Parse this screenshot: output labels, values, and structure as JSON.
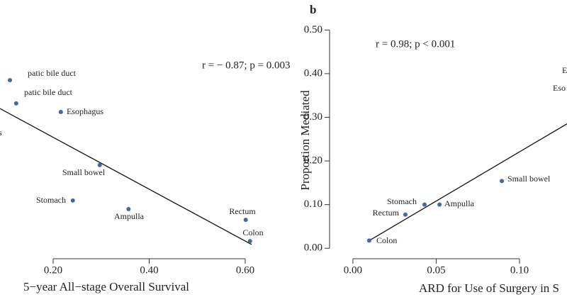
{
  "chart_data": [
    {
      "type": "scatter",
      "xlabel": "5−year All−stage Overall Survival",
      "annotation": "r = − 0.87; p = 0.003",
      "edge_labels": [
        "s"
      ],
      "labels": [
        "patic bile duct",
        "patic bile duct",
        "Esophagus",
        "Small bowel",
        "Stomach",
        "Ampulla",
        "Rectum",
        "Colon"
      ],
      "x": [
        0.11,
        0.123,
        0.216,
        0.297,
        0.241,
        0.357,
        0.601,
        0.61
      ],
      "y": [
        0.73,
        0.635,
        0.6,
        0.383,
        0.238,
        0.203,
        0.159,
        0.072
      ],
      "color": "#4466aa",
      "fit": {
        "x": [
          0.0893,
          0.6133
        ],
        "y": [
          0.614,
          0.058
        ]
      },
      "xlim": [
        0.0893,
        0.6266
      ],
      "ylim": [
        0,
        1
      ],
      "xticks": [
        {
          "value": 0.2,
          "label": "0.20"
        },
        {
          "value": 0.4,
          "label": "0.40"
        },
        {
          "value": 0.6,
          "label": "0.60"
        }
      ]
    },
    {
      "type": "scatter",
      "panel": "b",
      "xlabel": "ARD for Use of Surgery in S",
      "ylabel": "Proportion Mediated",
      "annotation": "r = 0.98; p < 0.001",
      "edge_labels": [
        "E",
        "Eso"
      ],
      "labels": [
        "Colon",
        "Rectum",
        "Stomach",
        "Ampulla",
        "Small bowel"
      ],
      "x": [
        0.0098,
        0.0315,
        0.043,
        0.052,
        0.0894
      ],
      "y": [
        0.0176,
        0.077,
        0.1,
        0.1,
        0.154
      ],
      "color": "#4466aa",
      "fit": {
        "x": [
          0.0098,
          0.1285
        ],
        "y": [
          0.0176,
          0.285
        ]
      },
      "xlim": [
        -0.014,
        0.1285
      ],
      "ylim": [
        -0.024,
        0.52
      ],
      "xticks": [
        {
          "value": 0,
          "label": "0.00"
        },
        {
          "value": 0.05,
          "label": "0.05"
        },
        {
          "value": 0.1,
          "label": "0.10"
        }
      ],
      "yticks": [
        {
          "value": 0,
          "label": "0.00"
        },
        {
          "value": 0.1,
          "label": "0.10"
        },
        {
          "value": 0.2,
          "label": "0.20"
        },
        {
          "value": 0.3,
          "label": "0.30"
        },
        {
          "value": 0.4,
          "label": "0.40"
        },
        {
          "value": 0.5,
          "label": "0.50"
        }
      ]
    }
  ]
}
